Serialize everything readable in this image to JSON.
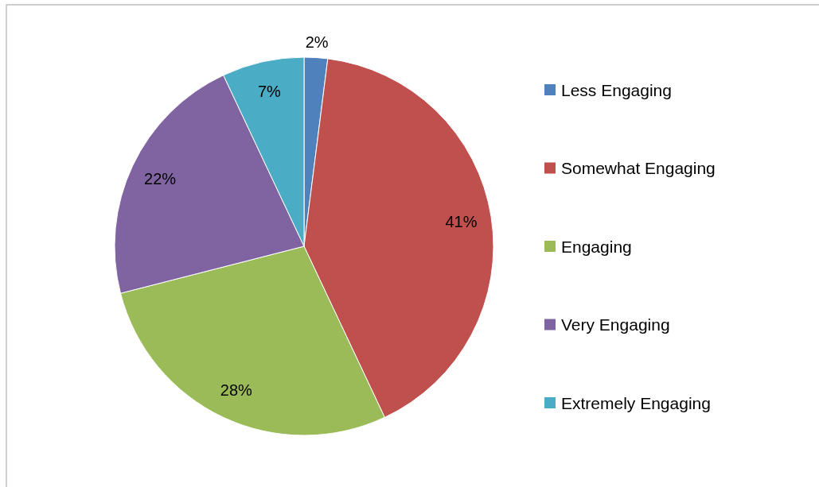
{
  "chart_data": {
    "type": "pie",
    "categories": [
      "Less Engaging",
      "Somewhat Engaging",
      "Engaging",
      "Very Engaging",
      "Extremely Engaging"
    ],
    "values": [
      2,
      41,
      28,
      22,
      7
    ],
    "colors": [
      "#4f81bd",
      "#c0504d",
      "#9bbb59",
      "#8064a2",
      "#4bacc6"
    ],
    "value_labels": [
      "2%",
      "41%",
      "28%",
      "22%",
      "7%"
    ],
    "legend": "right"
  }
}
